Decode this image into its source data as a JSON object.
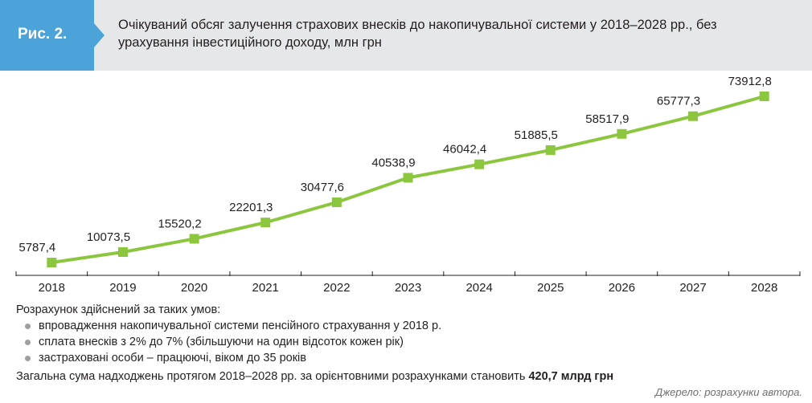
{
  "header": {
    "figure_label": "Рис. 2.",
    "title": "Очікуваний обсяг залучення страхових внесків до накопичувальної системи у 2018–2028 рр., без урахування інвестиційного доходу, млн грн"
  },
  "colors": {
    "badge": "#4ba3d9",
    "header_bg": "#e6e7e8",
    "line": "#8cc63f",
    "marker": "#8cc63f",
    "axis": "#231f20"
  },
  "chart_data": {
    "type": "line",
    "title": "Очікуваний обсяг залучення страхових внесків до накопичувальної системи у 2018–2028 рр., без урахування інвестиційного доходу, млн грн",
    "categories": [
      "2018",
      "2019",
      "2020",
      "2021",
      "2022",
      "2023",
      "2024",
      "2025",
      "2026",
      "2027",
      "2028"
    ],
    "values": [
      5787.4,
      10073.5,
      15520.2,
      22201.3,
      30477.6,
      40538.9,
      46042.4,
      51885.5,
      58517.9,
      65777.3,
      73912.8
    ],
    "value_labels": [
      "5787,4",
      "10073,5",
      "15520,2",
      "22201,3",
      "30477,6",
      "40538,9",
      "46042,4",
      "51885,5",
      "58517,9",
      "65777,3",
      "73912,8"
    ],
    "ylim": [
      0,
      80000
    ],
    "xlabel": "",
    "ylabel": "",
    "grid": false,
    "marker": "square",
    "legend": "none"
  },
  "notes": {
    "intro": "Розрахунок здійснений за таких умов:",
    "items": [
      "впровадження накопичувальної системи пенсійного страхування у 2018 р.",
      "сплата внесків з 2%  до 7% (збільшуючи на один відсоток кожен рік)",
      "застраховані особи – працюючі, віком до 35 років"
    ],
    "summary_prefix": "Загальна сума надходжень протягом 2018–2028 рр. за орієнтовними розрахунками становить ",
    "summary_value": "420,7 млрд грн"
  },
  "source": "Джерело: розрахунки автора."
}
